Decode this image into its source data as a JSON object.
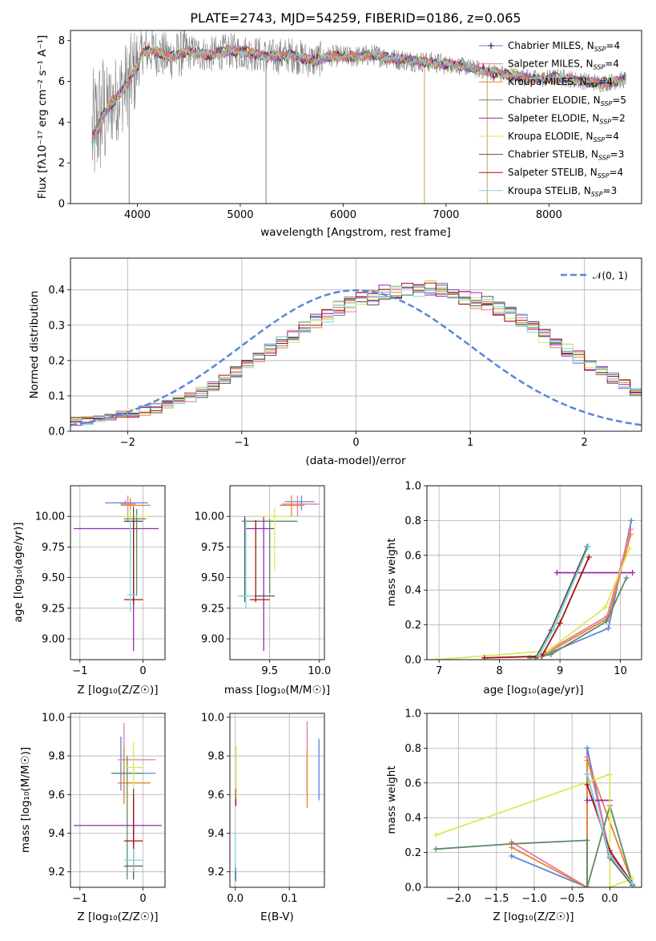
{
  "colors": {
    "chabrier_miles": "#5b86d6",
    "salpeter_miles": "#e879a6",
    "kroupa_miles": "#e8822e",
    "chabrier_elodie": "#5e8a65",
    "salpeter_elodie": "#9b27b3",
    "kroupa_elodie": "#d8ea5a",
    "chabrier_stelib": "#555555",
    "salpeter_stelib": "#a81010",
    "kroupa_stelib": "#7fd8e0",
    "data": "#808080",
    "gauss": "#5b86d6"
  },
  "chart_data": [
    {
      "id": "spectrum",
      "type": "line",
      "title": "PLATE=2743, MJD=54259, FIBERID=0186, z=0.065",
      "xlabel": "wavelength [Angstrom, rest frame]",
      "ylabel": "Flux [fλ10⁻¹⁷ erg cm⁻² s⁻¹ A⁻¹]",
      "xlim": [
        3350,
        8900
      ],
      "ylim": [
        0,
        8.5
      ],
      "xticks": [
        "4000",
        "5000",
        "6000",
        "7000",
        "8000"
      ],
      "yticks": [
        "0",
        "2",
        "4",
        "6",
        "8"
      ],
      "continuum": {
        "x": [
          3560,
          3620,
          3700,
          3800,
          3900,
          4000,
          4050,
          4150,
          4300,
          4500,
          4700,
          4900,
          5100,
          5300,
          5500,
          5700,
          5900,
          6100,
          6300,
          6500,
          6700,
          6900,
          7100,
          7300,
          7500,
          7700,
          7900,
          8100,
          8300,
          8500,
          8750
        ],
        "y": [
          3.3,
          4.1,
          4.6,
          5.2,
          5.9,
          6.7,
          7.5,
          7.5,
          7.2,
          7.45,
          7.3,
          7.5,
          7.4,
          7.2,
          7.3,
          7.0,
          7.25,
          7.2,
          7.3,
          7.1,
          7.0,
          6.9,
          6.8,
          6.6,
          6.4,
          6.25,
          6.1,
          6.2,
          6.05,
          5.9,
          6.1
        ]
      },
      "legend": [
        {
          "label": "Chabrier MILES, N",
          "sub": "SSP",
          "suffix": "=4",
          "color_key": "chabrier_miles"
        },
        {
          "label": "Salpeter MILES, N",
          "sub": "SSP",
          "suffix": "=4",
          "color_key": "salpeter_miles"
        },
        {
          "label": "Kroupa MILES, N",
          "sub": "SSP",
          "suffix": "=4",
          "color_key": "kroupa_miles"
        },
        {
          "label": "Chabrier ELODIE, N",
          "sub": "SSP",
          "suffix": "=5",
          "color_key": "chabrier_elodie"
        },
        {
          "label": "Salpeter ELODIE, N",
          "sub": "SSP",
          "suffix": "=2",
          "color_key": "salpeter_elodie"
        },
        {
          "label": "Kroupa ELODIE, N",
          "sub": "SSP",
          "suffix": "=4",
          "color_key": "kroupa_elodie"
        },
        {
          "label": "Chabrier STELIB, N",
          "sub": "SSP",
          "suffix": "=3",
          "color_key": "chabrier_stelib"
        },
        {
          "label": "Salpeter STELIB, N",
          "sub": "SSP",
          "suffix": "=4",
          "color_key": "salpeter_stelib"
        },
        {
          "label": "Kroupa STELIB, N",
          "sub": "SSP",
          "suffix": "=3",
          "color_key": "kroupa_stelib"
        }
      ]
    },
    {
      "id": "residuals",
      "type": "line",
      "xlabel": "(data-model)/error",
      "ylabel": "Normed distribution",
      "xlim": [
        -2.5,
        2.5
      ],
      "ylim": [
        0,
        0.49
      ],
      "xticks": [
        "−2",
        "−1",
        "0",
        "1",
        "2"
      ],
      "yticks": [
        "0.0",
        "0.1",
        "0.2",
        "0.3",
        "0.4"
      ],
      "legend": "𝒩(0, 1)",
      "base_histogram": {
        "bin_width": 0.1,
        "x_start": -2.5,
        "values": [
          0.028,
          0.03,
          0.035,
          0.04,
          0.045,
          0.05,
          0.058,
          0.066,
          0.075,
          0.085,
          0.095,
          0.11,
          0.13,
          0.15,
          0.17,
          0.19,
          0.21,
          0.23,
          0.25,
          0.27,
          0.29,
          0.31,
          0.33,
          0.35,
          0.36,
          0.37,
          0.38,
          0.39,
          0.395,
          0.4,
          0.4,
          0.405,
          0.4,
          0.39,
          0.38,
          0.37,
          0.36,
          0.35,
          0.33,
          0.31,
          0.29,
          0.27,
          0.25,
          0.23,
          0.21,
          0.19,
          0.17,
          0.15,
          0.13,
          0.11
        ]
      }
    },
    {
      "id": "age_vs_z",
      "type": "scatter",
      "xlabel": "Z [log₁₀(Z/Z☉)]",
      "ylabel": "age  [log₁₀(age/yr)]",
      "xlim": [
        -1.15,
        0.35
      ],
      "ylim": [
        8.83,
        10.25
      ],
      "xticks": [
        "−1",
        "0"
      ],
      "yticks": [
        "9.00",
        "9.25",
        "9.50",
        "9.75",
        "10.00"
      ],
      "points": [
        {
          "k": "chabrier_miles",
          "x": -0.28,
          "y": 10.11,
          "xe": [
            -0.6,
            0.08
          ],
          "ye": [
            10.1,
            10.13
          ]
        },
        {
          "k": "salpeter_miles",
          "x": -0.24,
          "y": 10.1,
          "xe": [
            -0.36,
            -0.12
          ],
          "ye": [
            9.95,
            10.17
          ]
        },
        {
          "k": "kroupa_miles",
          "x": -0.2,
          "y": 10.09,
          "xe": [
            -0.35,
            0.12
          ],
          "ye": [
            9.95,
            10.15
          ]
        },
        {
          "k": "chabrier_elodie",
          "x": -0.1,
          "y": 9.98,
          "xe": [
            -0.3,
            0.05
          ],
          "ye": [
            9.35,
            10.06
          ]
        },
        {
          "k": "salpeter_elodie",
          "x": -0.15,
          "y": 9.9,
          "xe": [
            -1.1,
            0.25
          ],
          "ye": [
            8.9,
            9.55
          ]
        },
        {
          "k": "kroupa_elodie",
          "x": -0.2,
          "y": 10.0,
          "xe": [
            -0.35,
            0.1
          ],
          "ye": [
            9.6,
            10.06
          ]
        },
        {
          "k": "chabrier_stelib",
          "x": -0.15,
          "y": 9.96,
          "xe": [
            -0.3,
            0.0
          ],
          "ye": [
            9.3,
            10.08
          ]
        },
        {
          "k": "salpeter_stelib",
          "x": -0.15,
          "y": 9.32,
          "xe": [
            -0.3,
            0.0
          ],
          "ye": [
            9.28,
            9.97
          ]
        },
        {
          "k": "kroupa_stelib",
          "x": -0.2,
          "y": 9.36,
          "xe": [
            -0.25,
            -0.1
          ],
          "ye": [
            9.22,
            9.98
          ]
        }
      ]
    },
    {
      "id": "age_vs_mass",
      "type": "scatter",
      "xlabel": "mass [log₁₀(M/M☉)]",
      "xlim": [
        9.1,
        10.05
      ],
      "ylim": [
        8.83,
        10.25
      ],
      "xticks": [
        "9.5",
        "10.0"
      ],
      "yticks": [
        "9.00",
        "9.25",
        "9.50",
        "9.75",
        "10.00"
      ],
      "points": [
        {
          "k": "chabrier_miles",
          "x": 9.82,
          "y": 10.12,
          "xe": [
            9.65,
            9.95
          ],
          "ye": [
            10.05,
            10.17
          ]
        },
        {
          "k": "salpeter_miles",
          "x": 9.78,
          "y": 10.1,
          "xe": [
            9.62,
            10.0
          ],
          "ye": [
            10.0,
            10.17
          ]
        },
        {
          "k": "kroupa_miles",
          "x": 9.72,
          "y": 10.09,
          "xe": [
            9.6,
            9.85
          ],
          "ye": [
            10.0,
            10.17
          ]
        },
        {
          "k": "chabrier_elodie",
          "x": 9.5,
          "y": 9.96,
          "xe": [
            9.22,
            9.78
          ],
          "ye": [
            9.37,
            9.98
          ]
        },
        {
          "k": "salpeter_elodie",
          "x": 9.44,
          "y": 9.9,
          "xe": [
            9.25,
            9.55
          ],
          "ye": [
            8.9,
            10.0
          ]
        },
        {
          "k": "kroupa_elodie",
          "x": 9.55,
          "y": 10.0,
          "xe": [
            9.4,
            9.7
          ],
          "ye": [
            9.55,
            10.07
          ]
        },
        {
          "k": "chabrier_stelib",
          "x": 9.25,
          "y": 9.35,
          "xe": [
            9.2,
            9.55
          ],
          "ye": [
            9.3,
            10.0
          ]
        },
        {
          "k": "salpeter_stelib",
          "x": 9.36,
          "y": 9.32,
          "xe": [
            9.3,
            9.5
          ],
          "ye": [
            9.3,
            9.97
          ]
        },
        {
          "k": "kroupa_stelib",
          "x": 9.26,
          "y": 9.35,
          "xe": [
            9.18,
            9.35
          ],
          "ye": [
            9.25,
            9.98
          ]
        }
      ]
    },
    {
      "id": "weight_vs_age",
      "type": "line",
      "xlabel": "age  [log₁₀(age/yr)]",
      "ylabel": "mass weight",
      "xlim": [
        6.8,
        10.35
      ],
      "ylim": [
        0,
        1.0
      ],
      "xticks": [
        "7",
        "8",
        "9",
        "10"
      ],
      "yticks": [
        "0.0",
        "0.2",
        "0.4",
        "0.6",
        "0.8",
        "1.0"
      ],
      "series": [
        {
          "k": "chabrier_miles",
          "x": [
            8.7,
            9.8,
            10.18
          ],
          "y": [
            0.02,
            0.18,
            0.8
          ]
        },
        {
          "k": "salpeter_miles",
          "x": [
            8.65,
            9.78,
            10.17
          ],
          "y": [
            0.02,
            0.25,
            0.75
          ]
        },
        {
          "k": "kroupa_miles",
          "x": [
            8.7,
            9.8,
            10.17
          ],
          "y": [
            0.02,
            0.24,
            0.72
          ]
        },
        {
          "k": "chabrier_elodie",
          "x": [
            8.5,
            8.85,
            9.77,
            10.1
          ],
          "y": [
            0.01,
            0.03,
            0.22,
            0.47
          ]
        },
        {
          "k": "salpeter_elodie",
          "x": [
            8.95,
            10.2
          ],
          "y": [
            0.5,
            0.5
          ]
        },
        {
          "k": "kroupa_elodie",
          "x": [
            6.95,
            8.8,
            9.75,
            10.15
          ],
          "y": [
            0.0,
            0.05,
            0.3,
            0.64
          ]
        },
        {
          "k": "chabrier_stelib",
          "x": [
            8.6,
            8.85,
            9.45
          ],
          "y": [
            0.01,
            0.17,
            0.65
          ]
        },
        {
          "k": "salpeter_stelib",
          "x": [
            7.75,
            8.7,
            9.0,
            9.48
          ],
          "y": [
            0.01,
            0.02,
            0.21,
            0.59
          ]
        },
        {
          "k": "kroupa_stelib",
          "x": [
            8.65,
            8.9,
            9.47
          ],
          "y": [
            0.02,
            0.18,
            0.65
          ]
        }
      ]
    },
    {
      "id": "mass_vs_z",
      "type": "scatter",
      "xlabel": "Z [log₁₀(Z/Z☉)]",
      "ylabel": "mass [log₁₀(M/M☉)]",
      "xlim": [
        -1.15,
        0.35
      ],
      "ylim": [
        9.12,
        10.02
      ],
      "xticks": [
        "−1",
        "0"
      ],
      "yticks": [
        "9.2",
        "9.4",
        "9.6",
        "9.8",
        "10.0"
      ],
      "points": [
        {
          "k": "chabrier_miles",
          "x": -0.35,
          "y": 9.71,
          "xe": [
            -0.5,
            0.2
          ],
          "ye": [
            9.62,
            9.9
          ]
        },
        {
          "k": "salpeter_miles",
          "x": -0.3,
          "y": 9.78,
          "xe": [
            -0.4,
            0.2
          ],
          "ye": [
            9.58,
            9.97
          ]
        },
        {
          "k": "kroupa_miles",
          "x": -0.3,
          "y": 9.66,
          "xe": [
            -0.4,
            0.12
          ],
          "ye": [
            9.55,
            9.85
          ]
        },
        {
          "k": "chabrier_elodie",
          "x": -0.25,
          "y": 9.71,
          "xe": [
            -0.5,
            0.0
          ],
          "ye": [
            9.16,
            9.8
          ]
        },
        {
          "k": "salpeter_elodie",
          "x": -0.15,
          "y": 9.44,
          "xe": [
            -1.1,
            0.3
          ],
          "ye": [
            9.3,
            9.5
          ]
        },
        {
          "k": "kroupa_elodie",
          "x": -0.15,
          "y": 9.74,
          "xe": [
            -0.3,
            0.0
          ],
          "ye": [
            9.5,
            9.87
          ]
        },
        {
          "k": "chabrier_stelib",
          "x": -0.15,
          "y": 9.23,
          "xe": [
            -0.3,
            0.0
          ],
          "ye": [
            9.16,
            9.63
          ]
        },
        {
          "k": "salpeter_stelib",
          "x": -0.15,
          "y": 9.36,
          "xe": [
            -0.3,
            0.0
          ],
          "ye": [
            9.2,
            9.6
          ]
        },
        {
          "k": "kroupa_stelib",
          "x": -0.15,
          "y": 9.26,
          "xe": [
            -0.3,
            0.0
          ],
          "ye": [
            9.2,
            9.32
          ]
        }
      ]
    },
    {
      "id": "mass_vs_ebv",
      "type": "scatter",
      "xlabel": "E(B-V)",
      "xlim": [
        -0.01,
        0.165
      ],
      "ylim": [
        9.12,
        10.02
      ],
      "xticks": [
        "0.0",
        "0.1"
      ],
      "yticks": [
        "9.2",
        "9.4",
        "9.6",
        "9.8",
        "10.0"
      ],
      "points": [
        {
          "k": "chabrier_miles",
          "x": 0.155,
          "y": 9.71,
          "ye": [
            9.57,
            9.89
          ]
        },
        {
          "k": "salpeter_miles",
          "x": 0.133,
          "y": 9.8,
          "ye": [
            9.6,
            9.98
          ]
        },
        {
          "k": "kroupa_miles",
          "x": 0.133,
          "y": 9.68,
          "ye": [
            9.53,
            9.84
          ]
        },
        {
          "k": "salpeter_stelib",
          "x": 0.001,
          "y": 9.58,
          "ye": [
            9.54,
            9.63
          ]
        },
        {
          "k": "kroupa_elodie",
          "x": 0.002,
          "y": 9.72,
          "ye": [
            9.58,
            9.85
          ]
        },
        {
          "k": "chabrier_elodie",
          "x": 0.0,
          "y": 9.2,
          "ye": [
            9.16,
            9.24
          ]
        },
        {
          "k": "kroupa_stelib",
          "x": 0.0,
          "y": 9.27,
          "ye": [
            9.2,
            9.4
          ]
        },
        {
          "k": "chabrier_miles",
          "x": 0.001,
          "y": 9.18,
          "ye": [
            9.15,
            9.22
          ]
        }
      ]
    },
    {
      "id": "weight_vs_z",
      "type": "line",
      "xlabel": "Z [log₁₀(Z/Z☉)]",
      "ylabel": "mass weight",
      "xlim": [
        -2.42,
        0.42
      ],
      "ylim": [
        0,
        1.0
      ],
      "xticks": [
        "−2.0",
        "−1.5",
        "−1.0",
        "−0.5",
        "0.0"
      ],
      "yticks": [
        "0.0",
        "0.2",
        "0.4",
        "0.6",
        "0.8",
        "1.0"
      ],
      "series": [
        {
          "k": "chabrier_miles",
          "x": [
            -1.3,
            -0.3,
            -0.3,
            0.0,
            0.3
          ],
          "y": [
            0.18,
            0.0,
            0.8,
            0.19,
            0.02
          ]
        },
        {
          "k": "salpeter_miles",
          "x": [
            -1.3,
            -0.3,
            -0.3,
            0.0,
            0.3
          ],
          "y": [
            0.26,
            0.0,
            0.75,
            0.2,
            0.02
          ]
        },
        {
          "k": "kroupa_miles",
          "x": [
            -1.3,
            -0.3,
            -0.3,
            0.3
          ],
          "y": [
            0.23,
            0.0,
            0.73,
            0.02
          ]
        },
        {
          "k": "chabrier_elodie",
          "x": [
            -2.3,
            -1.3,
            -0.3,
            -0.3,
            0.0,
            0.3
          ],
          "y": [
            0.22,
            0.25,
            0.27,
            0.0,
            0.47,
            0.02
          ]
        },
        {
          "k": "salpeter_elodie",
          "x": [
            -0.3,
            0.0
          ],
          "y": [
            0.5,
            0.5
          ]
        },
        {
          "k": "kroupa_elodie",
          "x": [
            -2.3,
            0.0,
            0.0,
            0.3
          ],
          "y": [
            0.3,
            0.65,
            0.0,
            0.05
          ]
        },
        {
          "k": "chabrier_stelib",
          "x": [
            -0.3,
            0.0,
            0.3
          ],
          "y": [
            0.65,
            0.17,
            0.01
          ]
        },
        {
          "k": "salpeter_stelib",
          "x": [
            -0.3,
            0.0,
            0.3
          ],
          "y": [
            0.59,
            0.21,
            0.02
          ]
        },
        {
          "k": "kroupa_stelib",
          "x": [
            -0.3,
            0.0,
            0.3
          ],
          "y": [
            0.65,
            0.18,
            0.02
          ]
        }
      ]
    }
  ]
}
